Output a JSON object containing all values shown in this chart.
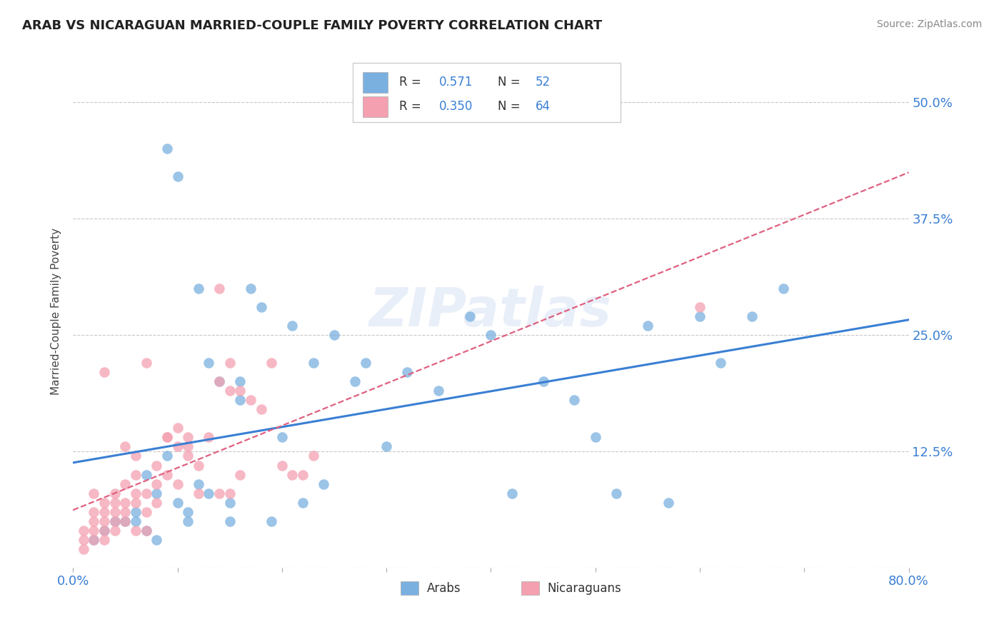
{
  "title": "ARAB VS NICARAGUAN MARRIED-COUPLE FAMILY POVERTY CORRELATION CHART",
  "source": "Source: ZipAtlas.com",
  "ylabel": "Married-Couple Family Poverty",
  "xlim": [
    0.0,
    0.8
  ],
  "ylim": [
    0.0,
    0.55
  ],
  "xtick_positions": [
    0.0,
    0.1,
    0.2,
    0.3,
    0.4,
    0.5,
    0.6,
    0.7,
    0.8
  ],
  "xticklabels": [
    "0.0%",
    "",
    "",
    "",
    "",
    "",
    "",
    "",
    "80.0%"
  ],
  "ytick_positions": [
    0.0,
    0.125,
    0.25,
    0.375,
    0.5
  ],
  "ytick_labels": [
    "",
    "12.5%",
    "25.0%",
    "37.5%",
    "50.0%"
  ],
  "watermark": "ZIPatlas",
  "arab_R": 0.571,
  "arab_N": 52,
  "nicaraguan_R": 0.35,
  "nicaraguan_N": 64,
  "arab_color": "#7ab0e0",
  "nicaraguan_color": "#f4a0b0",
  "arab_line_color": "#3a7fd4",
  "nicaraguan_line_color": "#e06080",
  "label_color": "#3a7fd4",
  "arab_points_x": [
    0.05,
    0.06,
    0.07,
    0.08,
    0.09,
    0.09,
    0.1,
    0.1,
    0.11,
    0.11,
    0.12,
    0.12,
    0.13,
    0.13,
    0.14,
    0.15,
    0.15,
    0.16,
    0.16,
    0.17,
    0.18,
    0.19,
    0.2,
    0.21,
    0.22,
    0.23,
    0.24,
    0.25,
    0.27,
    0.28,
    0.3,
    0.32,
    0.35,
    0.38,
    0.4,
    0.42,
    0.45,
    0.48,
    0.5,
    0.52,
    0.55,
    0.57,
    0.6,
    0.62,
    0.65,
    0.68,
    0.02,
    0.03,
    0.04,
    0.06,
    0.07,
    0.08
  ],
  "arab_points_y": [
    0.05,
    0.06,
    0.1,
    0.08,
    0.12,
    0.45,
    0.42,
    0.07,
    0.05,
    0.06,
    0.3,
    0.09,
    0.08,
    0.22,
    0.2,
    0.05,
    0.07,
    0.18,
    0.2,
    0.3,
    0.28,
    0.05,
    0.14,
    0.26,
    0.07,
    0.22,
    0.09,
    0.25,
    0.2,
    0.22,
    0.13,
    0.21,
    0.19,
    0.27,
    0.25,
    0.08,
    0.2,
    0.18,
    0.14,
    0.08,
    0.26,
    0.07,
    0.27,
    0.22,
    0.27,
    0.3,
    0.03,
    0.04,
    0.05,
    0.05,
    0.04,
    0.03
  ],
  "nicaraguan_points_x": [
    0.01,
    0.01,
    0.02,
    0.02,
    0.02,
    0.03,
    0.03,
    0.03,
    0.04,
    0.04,
    0.04,
    0.05,
    0.05,
    0.05,
    0.06,
    0.06,
    0.06,
    0.07,
    0.07,
    0.08,
    0.08,
    0.09,
    0.09,
    0.1,
    0.1,
    0.11,
    0.11,
    0.12,
    0.13,
    0.14,
    0.14,
    0.15,
    0.15,
    0.16,
    0.16,
    0.17,
    0.18,
    0.19,
    0.2,
    0.21,
    0.22,
    0.23,
    0.01,
    0.02,
    0.02,
    0.03,
    0.03,
    0.04,
    0.05,
    0.06,
    0.06,
    0.07,
    0.08,
    0.09,
    0.1,
    0.11,
    0.12,
    0.04,
    0.05,
    0.14,
    0.15,
    0.03,
    0.6,
    0.07
  ],
  "nicaraguan_points_y": [
    0.03,
    0.04,
    0.05,
    0.06,
    0.08,
    0.04,
    0.05,
    0.07,
    0.05,
    0.06,
    0.07,
    0.06,
    0.07,
    0.09,
    0.04,
    0.07,
    0.08,
    0.06,
    0.08,
    0.07,
    0.09,
    0.1,
    0.14,
    0.09,
    0.13,
    0.12,
    0.14,
    0.11,
    0.14,
    0.08,
    0.2,
    0.19,
    0.22,
    0.1,
    0.19,
    0.18,
    0.17,
    0.22,
    0.11,
    0.1,
    0.1,
    0.12,
    0.02,
    0.03,
    0.04,
    0.03,
    0.06,
    0.04,
    0.05,
    0.1,
    0.12,
    0.04,
    0.11,
    0.14,
    0.15,
    0.13,
    0.08,
    0.08,
    0.13,
    0.3,
    0.08,
    0.21,
    0.28,
    0.22
  ]
}
